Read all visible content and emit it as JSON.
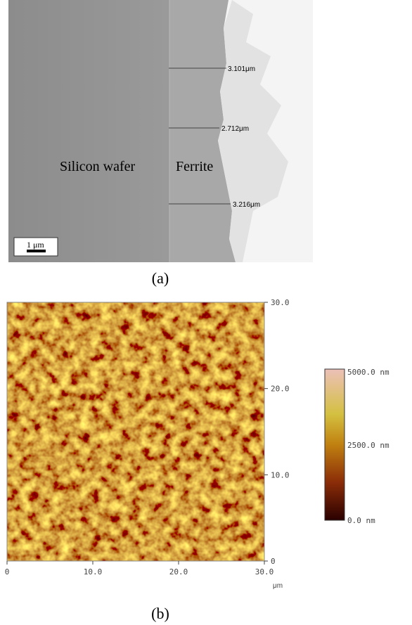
{
  "panel_a": {
    "regions": [
      "Silicon wafer",
      "Ferrite"
    ],
    "measurements": [
      "3.101μm",
      "2.712μm",
      "3.216μm"
    ],
    "scale_bar": "1 μm",
    "caption": "(a)"
  },
  "panel_b": {
    "xlim": [
      0,
      30
    ],
    "ylim": [
      0,
      30
    ],
    "xticks": [
      0,
      {
        "value": 10,
        "label": "10.0"
      },
      {
        "value": 20,
        "label": "20.0"
      },
      {
        "value": 30,
        "label": "30.0"
      }
    ],
    "yticks": [
      0,
      {
        "value": 10,
        "label": "10.0"
      },
      {
        "value": 20,
        "label": "20.0"
      },
      {
        "value": 30,
        "label": "30.0"
      }
    ],
    "axis_unit": "μm",
    "colorbar_labels": [
      "5000.0 nm",
      "2500.0 nm",
      "0.0 nm"
    ],
    "caption": "(b)"
  }
}
